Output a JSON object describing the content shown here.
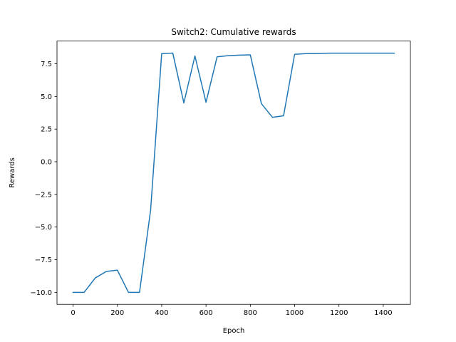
{
  "chart_data": {
    "type": "line",
    "title": "Switch2: Cumulative rewards",
    "xlabel": "Epoch",
    "ylabel": "Rewards",
    "xlim": [
      -72.5,
      1522.5
    ],
    "ylim": [
      -10.92,
      9.24
    ],
    "xticks": [
      0,
      200,
      400,
      600,
      800,
      1000,
      1200,
      1400
    ],
    "yticks": [
      -10.0,
      -7.5,
      -5.0,
      -2.5,
      0.0,
      2.5,
      5.0,
      7.5
    ],
    "ytick_labels": [
      "−10.0",
      "−7.5",
      "−5.0",
      "−2.5",
      "0.0",
      "2.5",
      "5.0",
      "7.5"
    ],
    "grid": false,
    "series": [
      {
        "color": "#1f77b4",
        "x": [
          0,
          50,
          100,
          150,
          200,
          250,
          300,
          350,
          400,
          450,
          500,
          550,
          600,
          650,
          700,
          750,
          800,
          850,
          900,
          950,
          1000,
          1050,
          1100,
          1150,
          1200,
          1250,
          1300,
          1350,
          1400,
          1450
        ],
        "y": [
          -10.0,
          -10.0,
          -8.9,
          -8.4,
          -8.3,
          -10.0,
          -10.0,
          -3.7,
          8.28,
          8.32,
          4.5,
          8.1,
          4.55,
          8.03,
          8.12,
          8.16,
          8.18,
          4.45,
          3.4,
          3.52,
          8.22,
          8.28,
          8.28,
          8.31,
          8.31,
          8.31,
          8.31,
          8.31,
          8.31,
          8.31
        ]
      }
    ]
  }
}
